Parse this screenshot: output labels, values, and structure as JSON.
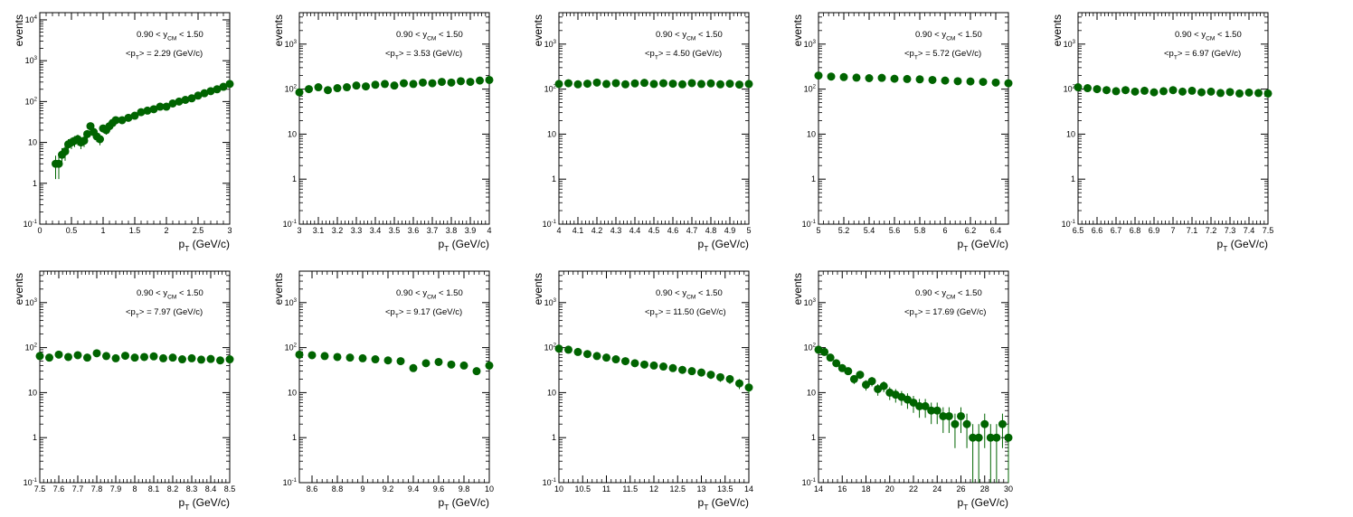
{
  "chart_data": [
    {
      "type": "scatter",
      "xlabel": "p_T (GeV/c)",
      "ylabel": "events",
      "yscale": "log",
      "ylim": [
        0.1,
        15000
      ],
      "xlim": [
        0,
        3
      ],
      "xticks": [
        0,
        0.5,
        1,
        1.5,
        2,
        2.5,
        3
      ],
      "xtick_labels": [
        "0",
        "0.5",
        "1",
        "1.5",
        "2",
        "2.5",
        "3"
      ],
      "ann_y": "0.90 < y_CM < 1.50",
      "ann_pt": "<p_T> = 2.29 (GeV/c)",
      "x": [
        0.25,
        0.3,
        0.35,
        0.4,
        0.45,
        0.5,
        0.55,
        0.6,
        0.65,
        0.7,
        0.75,
        0.8,
        0.85,
        0.9,
        0.95,
        1.0,
        1.05,
        1.1,
        1.15,
        1.2,
        1.3,
        1.4,
        1.5,
        1.6,
        1.7,
        1.8,
        1.9,
        2.0,
        2.1,
        2.2,
        2.3,
        2.4,
        2.5,
        2.6,
        2.7,
        2.8,
        2.9,
        3.0
      ],
      "values": [
        3,
        3,
        5,
        6,
        9,
        10,
        11,
        12,
        10,
        11,
        16,
        25,
        18,
        14,
        12,
        22,
        20,
        25,
        30,
        35,
        35,
        40,
        45,
        55,
        60,
        65,
        75,
        75,
        90,
        100,
        110,
        120,
        140,
        160,
        180,
        200,
        230,
        270
      ]
    },
    {
      "type": "scatter",
      "xlabel": "p_T (GeV/c)",
      "ylabel": "events",
      "yscale": "log",
      "ylim": [
        0.1,
        5000
      ],
      "xlim": [
        3,
        4
      ],
      "xticks": [
        3,
        3.1,
        3.2,
        3.3,
        3.4,
        3.5,
        3.6,
        3.7,
        3.8,
        3.9,
        4
      ],
      "xtick_labels": [
        "3",
        "3.1",
        "3.2",
        "3.3",
        "3.4",
        "3.5",
        "3.6",
        "3.7",
        "3.8",
        "3.9",
        "4"
      ],
      "ann_y": "0.90 < y_CM < 1.50",
      "ann_pt": "<p_T> = 3.53 (GeV/c)",
      "x": [
        3.0,
        3.05,
        3.1,
        3.15,
        3.2,
        3.25,
        3.3,
        3.35,
        3.4,
        3.45,
        3.5,
        3.55,
        3.6,
        3.65,
        3.7,
        3.75,
        3.8,
        3.85,
        3.9,
        3.95,
        4.0
      ],
      "values": [
        85,
        100,
        110,
        95,
        105,
        110,
        120,
        115,
        125,
        130,
        120,
        135,
        130,
        140,
        135,
        145,
        140,
        150,
        145,
        155,
        160
      ]
    },
    {
      "type": "scatter",
      "xlabel": "p_T (GeV/c)",
      "ylabel": "events",
      "yscale": "log",
      "ylim": [
        0.1,
        5000
      ],
      "xlim": [
        4,
        5
      ],
      "xticks": [
        4,
        4.1,
        4.2,
        4.3,
        4.4,
        4.5,
        4.6,
        4.7,
        4.8,
        4.9,
        5
      ],
      "xtick_labels": [
        "4",
        "4.1",
        "4.2",
        "4.3",
        "4.4",
        "4.5",
        "4.6",
        "4.7",
        "4.8",
        "4.9",
        "5"
      ],
      "ann_y": "0.90 < y_CM < 1.50",
      "ann_pt": "<p_T> = 4.50 (GeV/c)",
      "x": [
        4.0,
        4.05,
        4.1,
        4.15,
        4.2,
        4.25,
        4.3,
        4.35,
        4.4,
        4.45,
        4.5,
        4.55,
        4.6,
        4.65,
        4.7,
        4.75,
        4.8,
        4.85,
        4.9,
        4.95,
        5.0
      ],
      "values": [
        130,
        135,
        128,
        132,
        140,
        130,
        136,
        128,
        134,
        138,
        130,
        135,
        132,
        128,
        136,
        130,
        134,
        128,
        132,
        126,
        130
      ]
    },
    {
      "type": "scatter",
      "xlabel": "p_T (GeV/c)",
      "ylabel": "events",
      "yscale": "log",
      "ylim": [
        0.1,
        5000
      ],
      "xlim": [
        5,
        6.5
      ],
      "xticks": [
        5,
        5.2,
        5.4,
        5.6,
        5.8,
        6,
        6.2,
        6.4
      ],
      "xtick_labels": [
        "5",
        "5.2",
        "5.4",
        "5.6",
        "5.8",
        "6",
        "6.2",
        "6.4"
      ],
      "ann_y": "0.90 < y_CM < 1.50",
      "ann_pt": "<p_T> = 5.72 (GeV/c)",
      "x": [
        5.0,
        5.1,
        5.2,
        5.3,
        5.4,
        5.5,
        5.6,
        5.7,
        5.8,
        5.9,
        6.0,
        6.1,
        6.2,
        6.3,
        6.4,
        6.5
      ],
      "values": [
        200,
        190,
        185,
        180,
        175,
        178,
        170,
        168,
        165,
        160,
        155,
        150,
        148,
        145,
        140,
        135
      ]
    },
    {
      "type": "scatter",
      "xlabel": "p_T (GeV/c)",
      "ylabel": "events",
      "yscale": "log",
      "ylim": [
        0.1,
        5000
      ],
      "xlim": [
        6.5,
        7.5
      ],
      "xticks": [
        6.5,
        6.6,
        6.7,
        6.8,
        6.9,
        7,
        7.1,
        7.2,
        7.3,
        7.4,
        7.5
      ],
      "xtick_labels": [
        "6.5",
        "6.6",
        "6.7",
        "6.8",
        "6.9",
        "7",
        "7.1",
        "7.2",
        "7.3",
        "7.4",
        "7.5"
      ],
      "ann_y": "0.90 < y_CM < 1.50",
      "ann_pt": "<p_T> = 6.97 (GeV/c)",
      "x": [
        6.5,
        6.55,
        6.6,
        6.65,
        6.7,
        6.75,
        6.8,
        6.85,
        6.9,
        6.95,
        7.0,
        7.05,
        7.1,
        7.15,
        7.2,
        7.25,
        7.3,
        7.35,
        7.4,
        7.45,
        7.5
      ],
      "values": [
        110,
        105,
        100,
        95,
        90,
        95,
        88,
        92,
        85,
        90,
        95,
        88,
        92,
        85,
        88,
        82,
        86,
        80,
        84,
        82,
        80
      ]
    },
    {
      "type": "scatter",
      "xlabel": "p_T (GeV/c)",
      "ylabel": "events",
      "yscale": "log",
      "ylim": [
        0.1,
        5000
      ],
      "xlim": [
        7.5,
        8.5
      ],
      "xticks": [
        7.5,
        7.6,
        7.7,
        7.8,
        7.9,
        8,
        8.1,
        8.2,
        8.3,
        8.4,
        8.5
      ],
      "xtick_labels": [
        "7.5",
        "7.6",
        "7.7",
        "7.8",
        "7.9",
        "8",
        "8.1",
        "8.2",
        "8.3",
        "8.4",
        "8.5"
      ],
      "ann_y": "0.90 < y_CM < 1.50",
      "ann_pt": "<p_T> = 7.97 (GeV/c)",
      "x": [
        7.5,
        7.55,
        7.6,
        7.65,
        7.7,
        7.75,
        7.8,
        7.85,
        7.9,
        7.95,
        8.0,
        8.05,
        8.1,
        8.15,
        8.2,
        8.25,
        8.3,
        8.35,
        8.4,
        8.45,
        8.5
      ],
      "values": [
        65,
        60,
        70,
        62,
        68,
        60,
        75,
        65,
        58,
        66,
        60,
        62,
        64,
        58,
        60,
        55,
        58,
        54,
        56,
        52,
        55
      ]
    },
    {
      "type": "scatter",
      "xlabel": "p_T (GeV/c)",
      "ylabel": "events",
      "yscale": "log",
      "ylim": [
        0.1,
        5000
      ],
      "xlim": [
        8.5,
        10
      ],
      "xticks": [
        8.6,
        8.8,
        9,
        9.2,
        9.4,
        9.6,
        9.8,
        10
      ],
      "xtick_labels": [
        "8.6",
        "8.8",
        "9",
        "9.2",
        "9.4",
        "9.6",
        "9.8",
        "10"
      ],
      "ann_y": "0.90 < y_CM < 1.50",
      "ann_pt": "<p_T> = 9.17 (GeV/c)",
      "x": [
        8.5,
        8.6,
        8.7,
        8.8,
        8.9,
        9.0,
        9.1,
        9.2,
        9.3,
        9.4,
        9.5,
        9.6,
        9.7,
        9.8,
        9.9,
        10.0
      ],
      "values": [
        70,
        68,
        65,
        62,
        60,
        58,
        55,
        52,
        50,
        35,
        45,
        48,
        42,
        40,
        30,
        40
      ]
    },
    {
      "type": "scatter",
      "xlabel": "p_T (GeV/c)",
      "ylabel": "events",
      "yscale": "log",
      "ylim": [
        0.1,
        5000
      ],
      "xlim": [
        10,
        14
      ],
      "xticks": [
        10,
        10.5,
        11,
        11.5,
        12,
        12.5,
        13,
        13.5,
        14
      ],
      "xtick_labels": [
        "10",
        "10.5",
        "11",
        "11.5",
        "12",
        "12.5",
        "13",
        "13.5",
        "14"
      ],
      "ann_y": "0.90 < y_CM < 1.50",
      "ann_pt": "<p_T> = 11.50 (GeV/c)",
      "x": [
        10.0,
        10.2,
        10.4,
        10.6,
        10.8,
        11.0,
        11.2,
        11.4,
        11.6,
        11.8,
        12.0,
        12.2,
        12.4,
        12.6,
        12.8,
        13.0,
        13.2,
        13.4,
        13.6,
        13.8,
        14.0
      ],
      "values": [
        95,
        90,
        80,
        72,
        65,
        60,
        55,
        50,
        45,
        42,
        40,
        38,
        35,
        32,
        30,
        28,
        25,
        22,
        20,
        16,
        13
      ]
    },
    {
      "type": "scatter",
      "xlabel": "p_T (GeV/c)",
      "ylabel": "events",
      "yscale": "log",
      "ylim": [
        0.1,
        5000
      ],
      "xlim": [
        14,
        30
      ],
      "xticks": [
        14,
        16,
        18,
        20,
        22,
        24,
        26,
        28,
        30
      ],
      "xtick_labels": [
        "14",
        "16",
        "18",
        "20",
        "22",
        "24",
        "26",
        "28",
        "30"
      ],
      "ann_y": "0.90 < y_CM < 1.50",
      "ann_pt": "<p_T> = 17.69 (GeV/c)",
      "x": [
        14.0,
        14.5,
        15.0,
        15.5,
        16.0,
        16.5,
        17.0,
        17.5,
        18.0,
        18.5,
        19.0,
        19.5,
        20.0,
        20.5,
        21.0,
        21.5,
        22.0,
        22.5,
        23.0,
        23.5,
        24.0,
        24.5,
        25.0,
        25.5,
        26.0,
        26.5,
        27.0,
        27.5,
        28.0,
        28.5,
        29.0,
        29.5,
        30.0
      ],
      "values": [
        90,
        80,
        60,
        45,
        35,
        30,
        20,
        25,
        15,
        18,
        12,
        14,
        10,
        9,
        8,
        7,
        6,
        5,
        5,
        4,
        4,
        3,
        3,
        2,
        3,
        2,
        1,
        1,
        2,
        1,
        1,
        2,
        1
      ]
    }
  ]
}
